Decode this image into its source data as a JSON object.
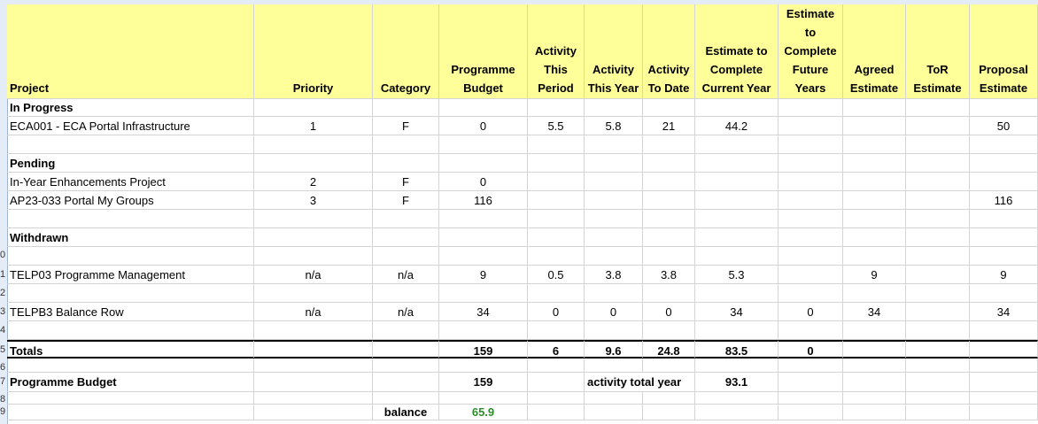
{
  "headers": {
    "project": "Project",
    "priority": "Priority",
    "category": "Category",
    "budget": "Programme Budget",
    "act_period": "Activity This Period",
    "act_year": "Activity This Year",
    "act_todate": "Activity To Date",
    "etc_current": "Estimate to Complete Current Year",
    "etc_future": "Estimate to Complete Future Years",
    "agreed": "Agreed Estimate",
    "tor": "ToR Estimate",
    "proposal": "Proposal Estimate"
  },
  "rows": [
    {
      "project": "In Progress",
      "bold": true
    },
    {
      "project": "ECA001 - ECA Portal Infrastructure",
      "priority": "1",
      "category": "F",
      "budget": "0",
      "act_period": "5.5",
      "act_year": "5.8",
      "act_todate": "21",
      "etc_current": "44.2",
      "proposal": "50"
    },
    {},
    {
      "project": "Pending",
      "bold": true
    },
    {
      "project": "In-Year Enhancements Project",
      "priority": "2",
      "category": "F",
      "budget": "0"
    },
    {
      "project": "AP23-033 Portal My Groups",
      "priority": "3",
      "category": "F",
      "budget": "116",
      "proposal": "116"
    },
    {},
    {
      "project": "Withdrawn",
      "bold": true
    },
    {},
    {
      "project": "TELP03 Programme Management",
      "priority": "n/a",
      "category": "n/a",
      "budget": "9",
      "act_period": "0.5",
      "act_year": "3.8",
      "act_todate": "3.8",
      "etc_current": "5.3",
      "agreed": "9",
      "proposal": "9"
    },
    {},
    {
      "project": "TELPB3 Balance Row",
      "priority": "n/a",
      "category": "n/a",
      "budget": "34",
      "act_period": "0",
      "act_year": "0",
      "act_todate": "0",
      "etc_current": "34",
      "etc_future": "0",
      "agreed": "34",
      "proposal": "34"
    },
    {},
    {
      "project": "Totals",
      "bold": true,
      "allbold": true,
      "budget": "159",
      "act_period": "6",
      "act_year": "9.6",
      "act_todate": "24.8",
      "etc_current": "83.5",
      "etc_future": "0"
    },
    {},
    {
      "project": "Programme Budget",
      "bold": true,
      "allbold": true,
      "budget": "159",
      "act_year": "activity total year",
      "etc_current": "93.1"
    },
    {},
    {
      "project": "",
      "allbold": true,
      "category": "balance",
      "budget": "65.9",
      "budget_green": true
    }
  ],
  "row_numbers": [
    "0",
    "1",
    "2",
    "3",
    "4",
    "5",
    "6",
    "7",
    "8",
    "9"
  ]
}
